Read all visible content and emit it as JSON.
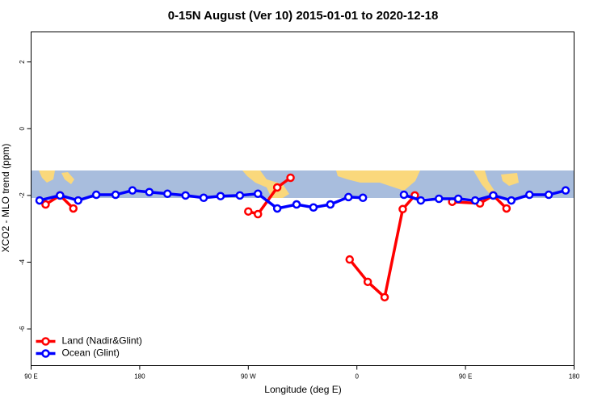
{
  "chart_data": {
    "type": "line",
    "title": "0-15N August (Ver 10)   2015-01-01 to 2020-12-18",
    "xlabel": "Longitude (deg E)",
    "ylabel": "XCO2 - MLO trend (ppm)",
    "xlim": [
      90,
      540
    ],
    "ylim": [
      -7.1,
      2.9
    ],
    "xticks": [
      {
        "value": 90,
        "label": "90 E"
      },
      {
        "value": 180,
        "label": "180"
      },
      {
        "value": 270,
        "label": "90 W"
      },
      {
        "value": 360,
        "label": "0"
      },
      {
        "value": 450,
        "label": "90 E"
      },
      {
        "value": 540,
        "label": "180"
      }
    ],
    "yticks": [
      2,
      0,
      -2,
      -4,
      -6
    ],
    "legend": "bottom-left",
    "series": [
      {
        "name": "Land (Nadir&Glint)",
        "color": "#ff0000",
        "x": [
          102,
          114,
          125,
          null,
          270,
          278,
          294,
          305,
          null,
          354,
          369,
          383,
          398,
          408,
          null,
          439,
          462,
          473,
          484
        ],
        "values": [
          -2.27,
          -2.0,
          -2.39,
          null,
          -2.48,
          -2.56,
          -1.76,
          -1.47,
          null,
          -3.92,
          -4.59,
          -5.05,
          -2.41,
          -2.0,
          null,
          -2.19,
          -2.24,
          -2.0,
          -2.39
        ]
      },
      {
        "name": "Ocean (Glint)",
        "color": "#0000ff",
        "x": [
          97,
          114,
          129,
          144,
          160,
          174,
          188,
          203,
          218,
          233,
          247,
          263,
          278,
          294,
          310,
          324,
          338,
          353,
          365,
          null,
          399,
          413,
          428,
          444,
          458,
          473,
          488,
          503,
          519,
          533
        ],
        "values": [
          -2.15,
          -2.0,
          -2.15,
          -1.98,
          -1.98,
          -1.85,
          -1.9,
          -1.95,
          -2.0,
          -2.07,
          -2.02,
          -2.0,
          -1.95,
          -2.39,
          -2.27,
          -2.36,
          -2.27,
          -2.05,
          -2.07,
          null,
          -1.98,
          -2.15,
          -2.1,
          -2.1,
          -2.15,
          -2.0,
          -2.15,
          -1.98,
          -1.98,
          -1.85
        ]
      }
    ]
  }
}
